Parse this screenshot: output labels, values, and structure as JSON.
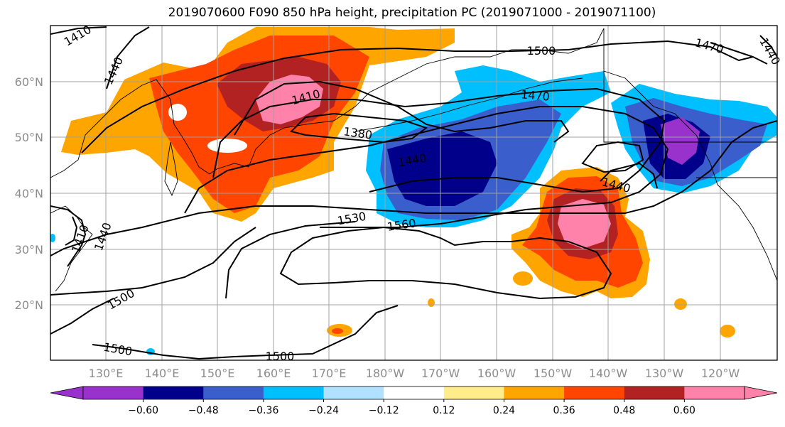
{
  "title": "2019070600 F090 850 hPa height, precipitation PC (2019071000 - 2019071100)",
  "map": {
    "lat_labels": [
      "60°N",
      "50°N",
      "40°N",
      "30°N",
      "20°N"
    ],
    "lon_labels": [
      "130°E",
      "140°E",
      "150°E",
      "160°E",
      "170°E",
      "180°W",
      "170°W",
      "160°W",
      "150°W",
      "140°W",
      "130°W",
      "120°W"
    ],
    "contour_labels": [
      "1410",
      "1440",
      "1500",
      "1410",
      "1380",
      "1470",
      "1440",
      "1440",
      "1530",
      "1560",
      "1410",
      "1440",
      "1500",
      "1500",
      "1500",
      "1470",
      "1440"
    ],
    "grid": true
  },
  "colorbar": {
    "colors": [
      "#9932cc",
      "#00008b",
      "#3a5fcd",
      "#00bfff",
      "#b0e2ff",
      "#ffffff",
      "#ffec8b",
      "#ffa500",
      "#ff4500",
      "#b22222",
      "#ff82ab"
    ],
    "tick_labels": [
      "−0.60",
      "−0.48",
      "−0.36",
      "−0.24",
      "−0.12",
      "0.12",
      "0.24",
      "0.36",
      "0.48",
      "0.60"
    ]
  }
}
